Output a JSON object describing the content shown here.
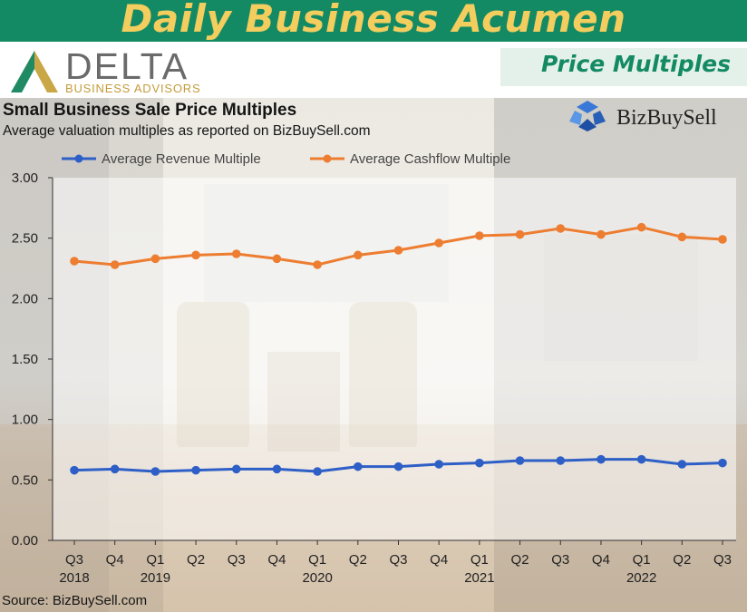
{
  "banner": {
    "title": "Daily Business Acumen"
  },
  "logo": {
    "word": "DELTA",
    "sub": "BUSINESS ADVISORS"
  },
  "section": {
    "label": "Price Multiples"
  },
  "source_logo": {
    "word": "BizBuySell"
  },
  "source_note": "Source: BizBuySell.com",
  "colors": {
    "banner": "#138a63",
    "banner_text": "#f3cd5e",
    "revenue": "#2e5fc7",
    "cashflow": "#ed7d31"
  },
  "chart_data": {
    "type": "line",
    "title": "Small Business Sale Price Multiples",
    "subtitle": "Average valuation multiples as reported on BizBuySell.com",
    "categories": [
      {
        "q": "Q3",
        "year": "2018"
      },
      {
        "q": "Q4",
        "year": ""
      },
      {
        "q": "Q1",
        "year": "2019"
      },
      {
        "q": "Q2",
        "year": ""
      },
      {
        "q": "Q3",
        "year": ""
      },
      {
        "q": "Q4",
        "year": ""
      },
      {
        "q": "Q1",
        "year": "2020"
      },
      {
        "q": "Q2",
        "year": ""
      },
      {
        "q": "Q3",
        "year": ""
      },
      {
        "q": "Q4",
        "year": ""
      },
      {
        "q": "Q1",
        "year": "2021"
      },
      {
        "q": "Q2",
        "year": ""
      },
      {
        "q": "Q3",
        "year": ""
      },
      {
        "q": "Q4",
        "year": ""
      },
      {
        "q": "Q1",
        "year": "2022"
      },
      {
        "q": "Q2",
        "year": ""
      },
      {
        "q": "Q3",
        "year": ""
      }
    ],
    "series": [
      {
        "name": "Average Revenue Multiple",
        "color": "#2e5fc7",
        "values": [
          0.58,
          0.59,
          0.57,
          0.58,
          0.59,
          0.59,
          0.57,
          0.61,
          0.61,
          0.63,
          0.64,
          0.66,
          0.66,
          0.67,
          0.67,
          0.63,
          0.64
        ]
      },
      {
        "name": "Average Cashflow Multiple",
        "color": "#ed7d31",
        "values": [
          2.31,
          2.28,
          2.33,
          2.36,
          2.37,
          2.33,
          2.28,
          2.36,
          2.4,
          2.46,
          2.52,
          2.53,
          2.58,
          2.53,
          2.59,
          2.51,
          2.49
        ]
      }
    ],
    "ylim": [
      0,
      3
    ],
    "yticks": [
      "0.00",
      "0.50",
      "1.00",
      "1.50",
      "2.00",
      "2.50",
      "3.00"
    ],
    "legend": "top",
    "grid": false
  }
}
